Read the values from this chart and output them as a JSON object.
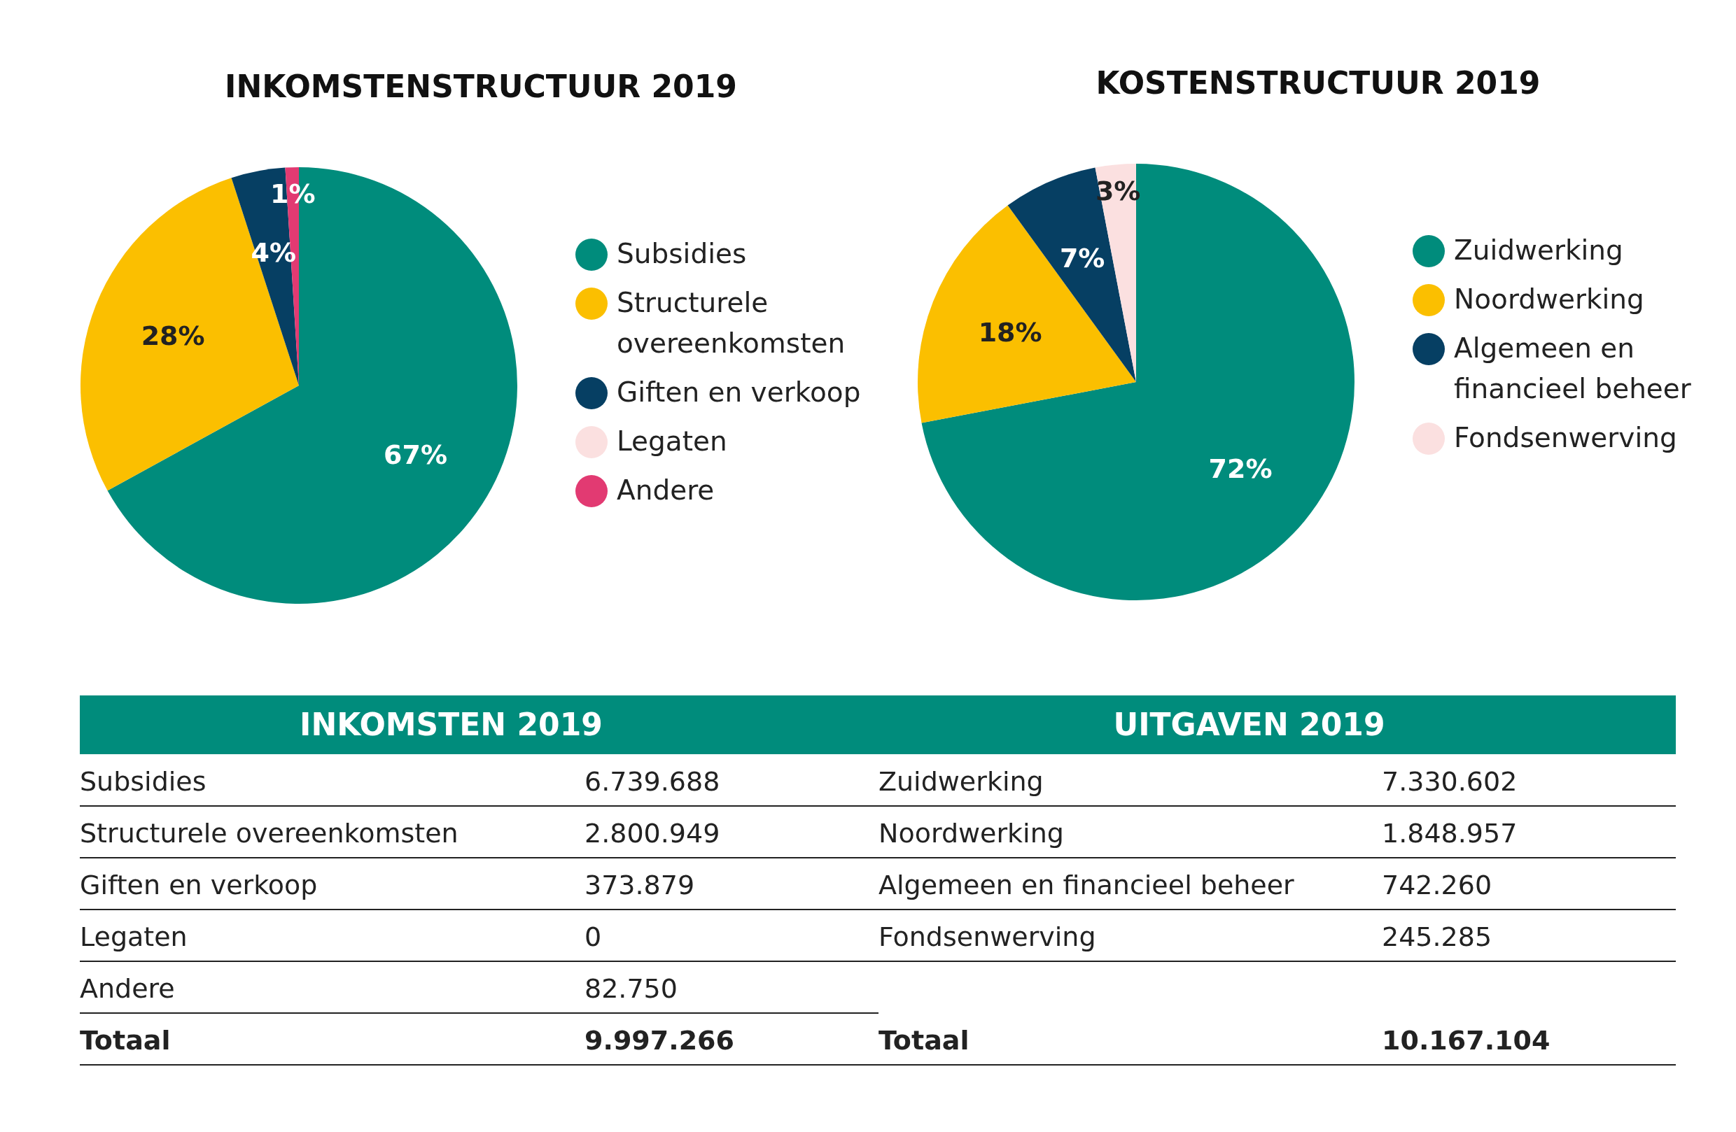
{
  "chart_data": [
    {
      "type": "pie",
      "title": "INKOMSTENSTRUCTUUR 2019",
      "categories": [
        "Subsidies",
        "Structurele overeenkomsten",
        "Giften en verkoop",
        "Legaten",
        "Andere"
      ],
      "values": [
        67,
        28,
        4,
        0,
        1
      ],
      "value_labels": [
        "67%",
        "28%",
        "4%",
        null,
        "1%"
      ],
      "colors": [
        "#008c7c",
        "#fbbf00",
        "#063f63",
        "#fbe0e0",
        "#e23a72"
      ],
      "legend": "right"
    },
    {
      "type": "pie",
      "title": "KOSTENSTRUCTUUR  2019",
      "categories": [
        "Zuidwerking",
        "Noordwerking",
        "Algemeen en financieel beheer",
        "Fondsenwerving"
      ],
      "values": [
        72,
        18,
        7,
        3
      ],
      "value_labels": [
        "72%",
        "18%",
        "7%",
        "3%"
      ],
      "colors": [
        "#008c7c",
        "#fbbf00",
        "#063f63",
        "#fbe0e0"
      ],
      "legend": "right"
    },
    {
      "type": "other",
      "title": "INKOMSTEN 2019",
      "categories": [
        "Subsidies",
        "Structurele overeenkomsten",
        "Giften en verkoop",
        "Legaten",
        "Andere",
        "Totaal"
      ],
      "value_labels": [
        "6.739.688",
        "2.800.949",
        "373.879",
        "0",
        "82.750",
        "9.997.266"
      ]
    },
    {
      "type": "other",
      "title": "UITGAVEN 2019",
      "categories": [
        "Zuidwerking",
        "Noordwerking",
        "Algemeen en financieel beheer",
        "Fondsenwerving",
        "Totaal"
      ],
      "value_labels": [
        "7.330.602",
        "1.848.957",
        "742.260",
        "245.285",
        "10.167.104"
      ]
    }
  ]
}
